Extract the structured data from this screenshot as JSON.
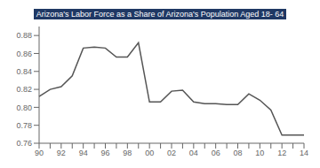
{
  "chart_data": {
    "type": "line",
    "title": "Arizona's Labor Force as a Share of Arizona's Population Aged 18- 64",
    "categories": [
      "90",
      null,
      "92",
      null,
      "94",
      null,
      "96",
      null,
      "98",
      null,
      "00",
      null,
      "02",
      null,
      "04",
      null,
      "06",
      null,
      "08",
      null,
      "10",
      null,
      "12",
      null,
      "14"
    ],
    "values": [
      0.812,
      0.82,
      0.823,
      0.835,
      0.866,
      0.867,
      0.866,
      0.856,
      0.856,
      0.872,
      0.806,
      0.806,
      0.818,
      0.819,
      0.806,
      0.804,
      0.804,
      0.803,
      0.803,
      0.815,
      0.808,
      0.797,
      0.769,
      0.769,
      0.769
    ],
    "color": "#555555",
    "ylim": [
      0.76,
      0.89
    ],
    "yticks": [
      0.76,
      0.78,
      {
        "value": 0.8,
        "label": "0.80"
      },
      0.82,
      0.84,
      0.86,
      0.88
    ],
    "grid": false
  }
}
